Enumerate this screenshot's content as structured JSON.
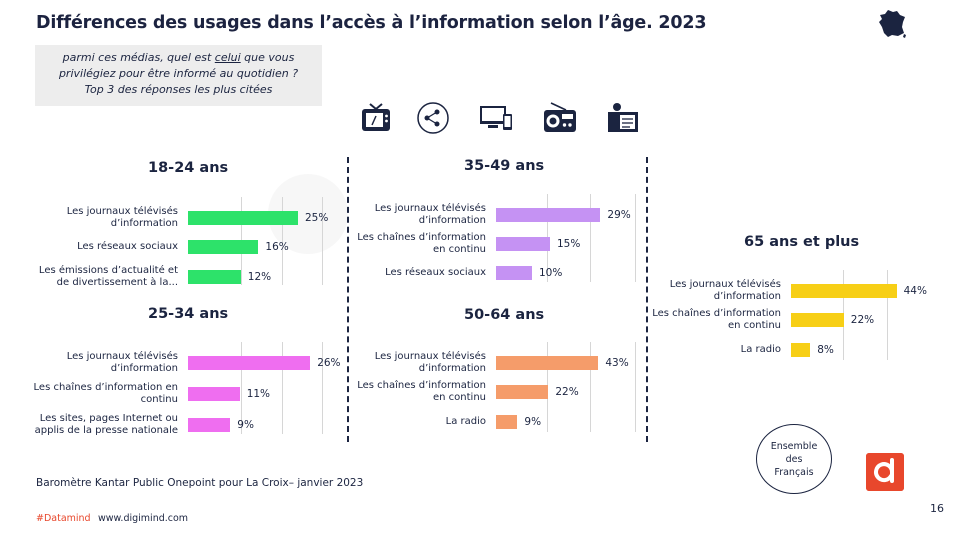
{
  "title": "Différences des usages dans l’accès à l’information selon l’âge. 2023",
  "question": {
    "line1_pre": "parmi ces médias, quel est ",
    "line1_underlined": "celui",
    "line1_post": " que vous",
    "line2": "privilégiez pour être informé au quotidien ?",
    "line3": "Top 3 des réponses les plus citées"
  },
  "media_icons": [
    "tv-icon",
    "social-network-icon",
    "devices-icon",
    "radio-icon",
    "newspaper-reader-icon"
  ],
  "colors": {
    "18-24": "#2de26a",
    "25-34": "#ef6ef0",
    "35-49": "#c592f3",
    "50-64": "#f59c6a",
    "65+": "#f7cf16",
    "brand": "#e8472c",
    "text": "#1b2440"
  },
  "chart_data": [
    {
      "type": "bar",
      "title": "18-24 ans",
      "categories": [
        "Les journaux télévisés\nd’information",
        "Les réseaux sociaux",
        "Les émissions d’actualité et\nde divertissement à la..."
      ],
      "values": [
        25,
        16,
        12
      ],
      "value_labels": [
        "25%",
        "16%",
        "12%"
      ]
    },
    {
      "type": "bar",
      "title": "25-34 ans",
      "categories": [
        "Les journaux télévisés\nd’information",
        "Les chaînes d’information en\ncontinu",
        "Les sites, pages Internet ou\napplis de la presse nationale"
      ],
      "values": [
        26,
        11,
        9
      ],
      "value_labels": [
        "26%",
        "11%",
        "9%"
      ]
    },
    {
      "type": "bar",
      "title": "35-49 ans",
      "categories": [
        "Les journaux télévisés\nd’information",
        "Les chaînes d’information\nen continu",
        "Les réseaux sociaux"
      ],
      "values": [
        29,
        15,
        10
      ],
      "value_labels": [
        "29%",
        "15%",
        "10%"
      ]
    },
    {
      "type": "bar",
      "title": "50-64 ans",
      "categories": [
        "Les journaux télévisés\nd’information",
        "Les chaînes d’information\nen continu",
        "La radio"
      ],
      "values": [
        43,
        22,
        9
      ],
      "value_labels": [
        "43%",
        "22%",
        "9%"
      ]
    },
    {
      "type": "bar",
      "title": "65 ans et plus",
      "categories": [
        "Les journaux télévisés\nd’information",
        "Les chaînes d’information\nen continu",
        "La radio"
      ],
      "values": [
        44,
        22,
        8
      ],
      "value_labels": [
        "44%",
        "22%",
        "8%"
      ]
    }
  ],
  "ensemble_label": "Ensemble\ndes\nFrançais",
  "source": "Baromètre Kantar Public Onepoint pour La Croix– janvier 2023",
  "footer": {
    "tag": "#Datamind",
    "url": "www.digimind.com"
  },
  "page_number": "16"
}
